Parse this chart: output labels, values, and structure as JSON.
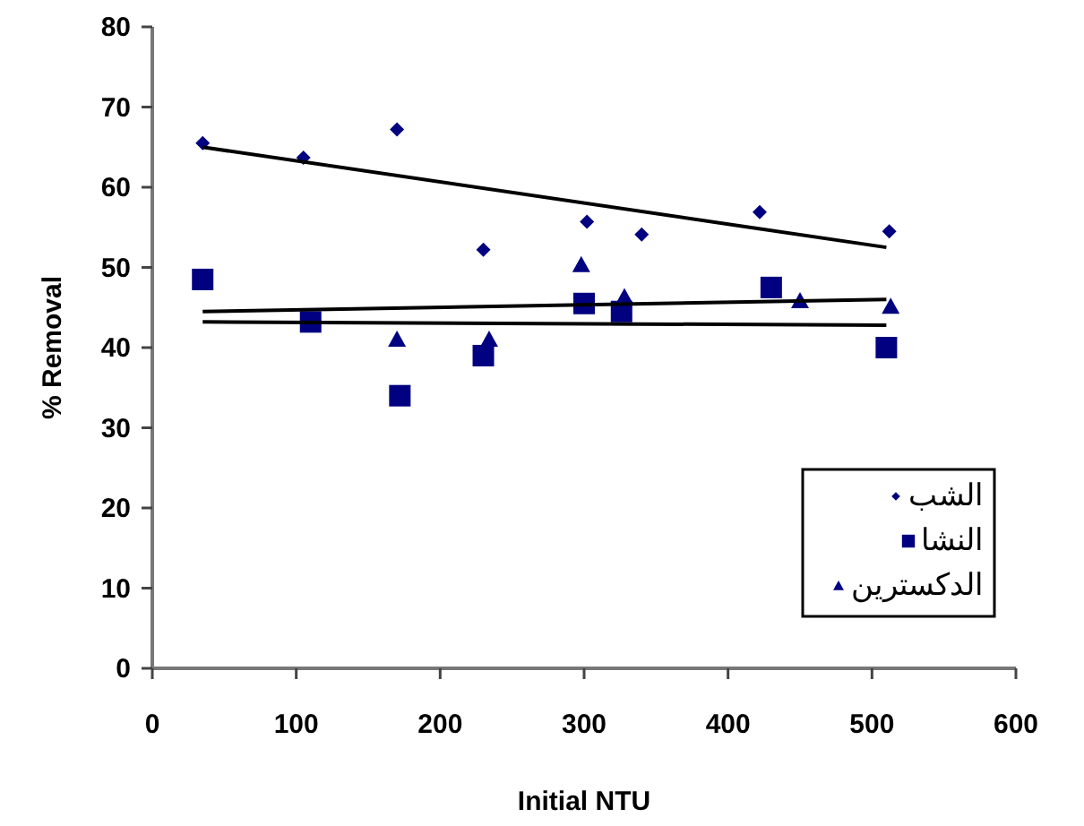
{
  "chart_data": {
    "type": "scatter",
    "xlabel": "Initial NTU",
    "ylabel": "% Removal",
    "xlim": [
      0,
      600
    ],
    "xticks": [
      0,
      100,
      200,
      300,
      400,
      500,
      600
    ],
    "ylim": [
      0,
      80
    ],
    "yticks": [
      0,
      10,
      20,
      30,
      40,
      50,
      60,
      70,
      80
    ],
    "grid": false,
    "legend": "bottom right",
    "series": [
      {
        "name": "الشب",
        "color": "#000080",
        "marker": "diamond",
        "x": [
          35,
          105,
          170,
          230,
          302,
          340,
          422,
          512
        ],
        "values": [
          65.5,
          63.7,
          67.2,
          52.2,
          55.7,
          54.1,
          56.9,
          54.5
        ]
      },
      {
        "name": "النشا",
        "color": "#000080",
        "marker": "square",
        "x": [
          35,
          110,
          172,
          230,
          300,
          326,
          430,
          510
        ],
        "values": [
          48.5,
          43.2,
          34,
          39,
          45.5,
          44.5,
          47.5,
          40
        ]
      },
      {
        "name": "الدكسترين",
        "color": "#000080",
        "marker": "triangle",
        "x": [
          170,
          234,
          298,
          328,
          450,
          513
        ],
        "values": [
          41,
          41,
          50.3,
          46.3,
          45.8,
          45.1
        ]
      },
      {
        "type": "line",
        "color": "#000000",
        "marker": "none",
        "x": [
          35,
          510
        ],
        "values": [
          65,
          52.5
        ]
      },
      {
        "type": "line",
        "color": "#000000",
        "marker": "none",
        "x": [
          35,
          510
        ],
        "values": [
          43.2,
          42.8
        ]
      },
      {
        "type": "line",
        "color": "#000000",
        "marker": "none",
        "x": [
          35,
          510
        ],
        "values": [
          44.5,
          46
        ]
      }
    ]
  }
}
